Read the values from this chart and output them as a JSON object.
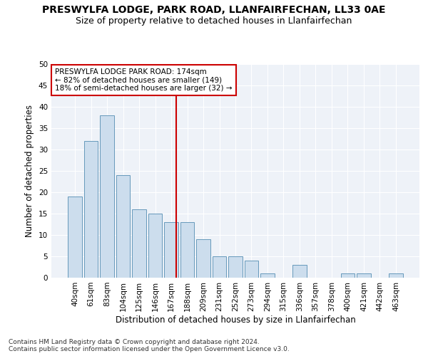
{
  "title1": "PRESWYLFA LODGE, PARK ROAD, LLANFAIRFECHAN, LL33 0AE",
  "title2": "Size of property relative to detached houses in Llanfairfechan",
  "xlabel": "Distribution of detached houses by size in Llanfairfechan",
  "ylabel": "Number of detached properties",
  "footnote": "Contains HM Land Registry data © Crown copyright and database right 2024.\nContains public sector information licensed under the Open Government Licence v3.0.",
  "bar_labels": [
    "40sqm",
    "61sqm",
    "83sqm",
    "104sqm",
    "125sqm",
    "146sqm",
    "167sqm",
    "188sqm",
    "209sqm",
    "231sqm",
    "252sqm",
    "273sqm",
    "294sqm",
    "315sqm",
    "336sqm",
    "357sqm",
    "378sqm",
    "400sqm",
    "421sqm",
    "442sqm",
    "463sqm"
  ],
  "bar_values": [
    19,
    32,
    38,
    24,
    16,
    15,
    13,
    13,
    9,
    5,
    5,
    4,
    1,
    0,
    3,
    0,
    0,
    1,
    1,
    0,
    1
  ],
  "bar_color": "#ccdded",
  "bar_edgecolor": "#6699bb",
  "highlight_label": "PRESWYLFA LODGE PARK ROAD: 174sqm\n← 82% of detached houses are smaller (149)\n18% of semi-detached houses are larger (32) →",
  "annotation_box_color": "#ffffff",
  "annotation_box_edgecolor": "#cc0000",
  "vline_color": "#cc0000",
  "ylim": [
    0,
    50
  ],
  "yticks": [
    0,
    5,
    10,
    15,
    20,
    25,
    30,
    35,
    40,
    45,
    50
  ],
  "bg_color": "#eef2f8",
  "grid_color": "#ffffff",
  "title1_fontsize": 10,
  "title2_fontsize": 9,
  "xlabel_fontsize": 8.5,
  "ylabel_fontsize": 8.5,
  "tick_fontsize": 7.5,
  "annot_fontsize": 7.5,
  "footnote_fontsize": 6.5,
  "vline_pos": 6.333
}
